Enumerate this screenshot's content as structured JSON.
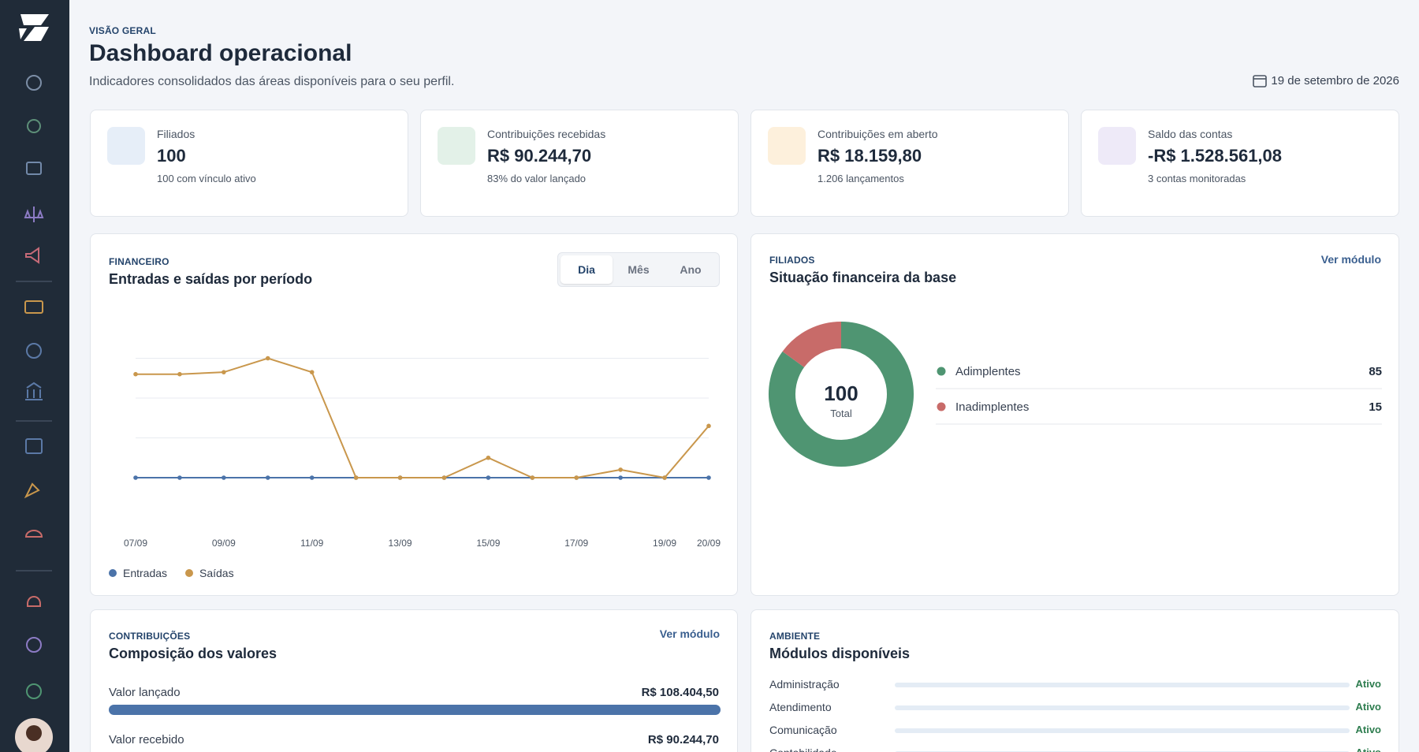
{
  "header": {
    "eyebrow": "VISÃO GERAL",
    "title": "Dashboard operacional",
    "subtitle": "Indicadores consolidados das áreas disponíveis para o seu perfil.",
    "date": "19 de setembro de 2026"
  },
  "stats": [
    {
      "label": "Filiados",
      "value": "100",
      "note": "100 com vínculo ativo"
    },
    {
      "label": "Contribuições recebidas",
      "value": "R$ 90.244,70",
      "note": "83% do valor lançado"
    },
    {
      "label": "Contribuições em aberto",
      "value": "R$ 18.159,80",
      "note": "1.206 lançamentos"
    },
    {
      "label": "Saldo das contas",
      "value": "-R$ 1.528.561,08",
      "note": "3 contas monitoradas"
    }
  ],
  "finance": {
    "eyebrow": "FINANCEIRO",
    "title": "Entradas e saídas por período",
    "periods": [
      "Dia",
      "Mês",
      "Ano"
    ],
    "chart_data": {
      "type": "line",
      "categories": [
        "07/09",
        null,
        "09/09",
        null,
        "11/09",
        null,
        "13/09",
        null,
        "15/09",
        null,
        "17/09",
        null,
        "19/09",
        "20/09"
      ],
      "series": [
        {
          "name": "Entradas",
          "color": "#4b73a9",
          "values": [
            0,
            0,
            0,
            0,
            0,
            0,
            0,
            0,
            0,
            0,
            0,
            0,
            0,
            0
          ]
        },
        {
          "name": "Saídas",
          "color": "#c9974c",
          "values": [
            2.6,
            2.6,
            2.65,
            3,
            2.65,
            0,
            0,
            0,
            0.5,
            0,
            0,
            0.2,
            0,
            1.3
          ]
        }
      ],
      "ylim": [
        0,
        4
      ],
      "yticks": [
        0,
        1,
        2,
        3
      ],
      "grid": true
    }
  },
  "members": {
    "eyebrow": "FILIADOS",
    "title": "Situação financeira da base",
    "link": "Ver módulo",
    "chart_data": {
      "type": "donut",
      "total": "100",
      "total_label": "Total",
      "categories": [
        "Adimplentes",
        "Inadimplentes"
      ],
      "values": [
        85,
        15
      ],
      "colors": [
        "#4f9572",
        "#c86b69"
      ]
    }
  },
  "contributions": {
    "eyebrow": "CONTRIBUIÇÕES",
    "title": "Composição dos valores",
    "link": "Ver módulo",
    "rows": [
      {
        "name": "Valor lançado",
        "value": 108404.5,
        "value_label": "R$ 108.404,50"
      },
      {
        "name": "Valor recebido",
        "value": 90244.7,
        "value_label": "R$ 90.244,70"
      }
    ]
  },
  "modules": {
    "eyebrow": "AMBIENTE",
    "title": "Módulos disponíveis",
    "rows": [
      {
        "name": "Administração",
        "status": "Ativo"
      },
      {
        "name": "Atendimento",
        "status": "Ativo"
      },
      {
        "name": "Comunicação",
        "status": "Ativo"
      },
      {
        "name": "Contabilidade",
        "status": "Ativo"
      }
    ]
  }
}
